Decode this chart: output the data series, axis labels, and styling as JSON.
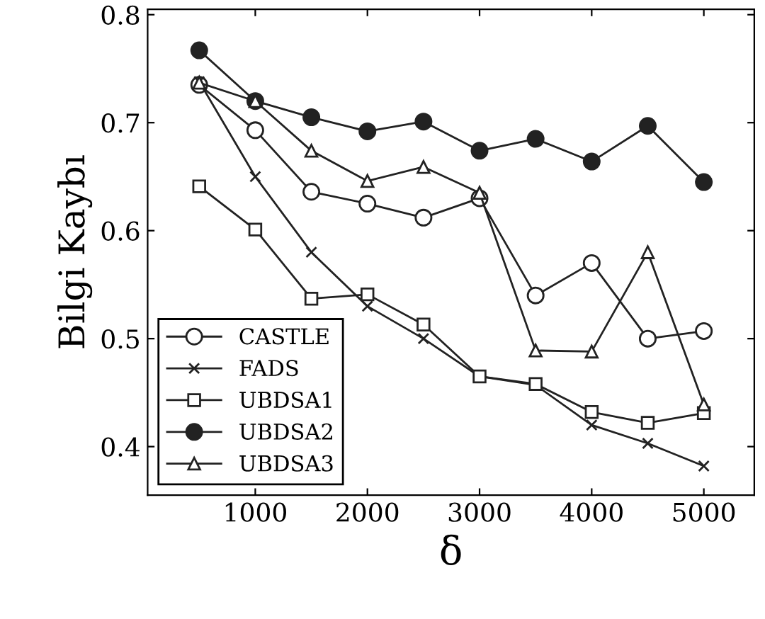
{
  "chart_data": {
    "type": "line",
    "xlabel": "δ",
    "ylabel": "Bilgi Kaybı",
    "x": [
      500,
      1000,
      1500,
      2000,
      2500,
      3000,
      3500,
      4000,
      4500,
      5000
    ],
    "series": [
      {
        "name": "CASTLE",
        "color": "#222222",
        "marker": "circle",
        "values": [
          0.735,
          0.693,
          0.636,
          0.625,
          0.612,
          0.63,
          0.54,
          0.57,
          0.5,
          0.507
        ]
      },
      {
        "name": "FADS",
        "color": "#222222",
        "marker": "cross",
        "values": [
          0.738,
          0.65,
          0.58,
          0.53,
          0.5,
          0.465,
          0.457,
          0.42,
          0.403,
          0.382
        ]
      },
      {
        "name": "UBDSA1",
        "color": "#222222",
        "marker": "square",
        "values": [
          0.641,
          0.601,
          0.537,
          0.541,
          0.513,
          0.465,
          0.458,
          0.432,
          0.422,
          0.431
        ]
      },
      {
        "name": "UBDSA2",
        "color": "#222222",
        "marker": "circle",
        "values": [
          0.767,
          0.72,
          0.705,
          0.692,
          0.701,
          0.674,
          0.685,
          0.664,
          0.697,
          0.645
        ]
      },
      {
        "name": "UBDSA3",
        "color": "#222222",
        "marker": "triangle",
        "values": [
          0.737,
          0.72,
          0.674,
          0.646,
          0.659,
          0.635,
          0.489,
          0.488,
          0.58,
          0.439
        ]
      }
    ],
    "xlim": [
      40,
      5450
    ],
    "ylim": [
      0.355,
      0.805
    ],
    "xticks": [
      1000,
      2000,
      3000,
      4000,
      5000
    ],
    "yticks": [
      0.4,
      0.5,
      0.6,
      0.7,
      0.8
    ],
    "grid": false,
    "legend": "bottom left",
    "line_style": "solid"
  }
}
